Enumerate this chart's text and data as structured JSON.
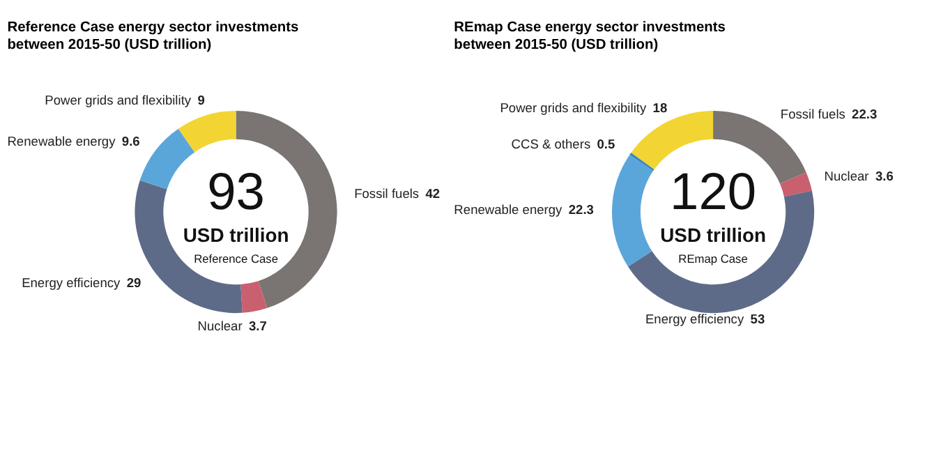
{
  "chart_data": [
    {
      "type": "donut",
      "title": "Reference Case energy sector investments between 2015-50 (USD trillion)",
      "categories": [
        "Fossil fuels",
        "Nuclear",
        "Energy efficiency",
        "Renewable energy",
        "Power grids and flexibility"
      ],
      "values": [
        42,
        3.7,
        29,
        9.6,
        9
      ],
      "colors": [
        "#7a7572",
        "#c9606f",
        "#5e6b88",
        "#5aa6da",
        "#f2d533"
      ],
      "data_labels": true,
      "legend": false,
      "annotations": [
        "93",
        "USD trillion",
        "Reference Case"
      ]
    },
    {
      "type": "donut",
      "title": "REmap Case energy sector investments between 2015-50 (USD trillion)",
      "categories": [
        "Fossil fuels",
        "Nuclear",
        "Energy efficiency",
        "Renewable energy",
        "CCS & others",
        "Power grids and flexibility"
      ],
      "values": [
        22.3,
        3.6,
        53,
        22.3,
        0.5,
        18
      ],
      "colors": [
        "#7a7572",
        "#c9606f",
        "#5e6b88",
        "#5aa6da",
        "#3d86c0",
        "#f2d533"
      ],
      "data_labels": true,
      "legend": false,
      "annotations": [
        "120",
        "USD trillion",
        "REmap Case"
      ]
    }
  ]
}
